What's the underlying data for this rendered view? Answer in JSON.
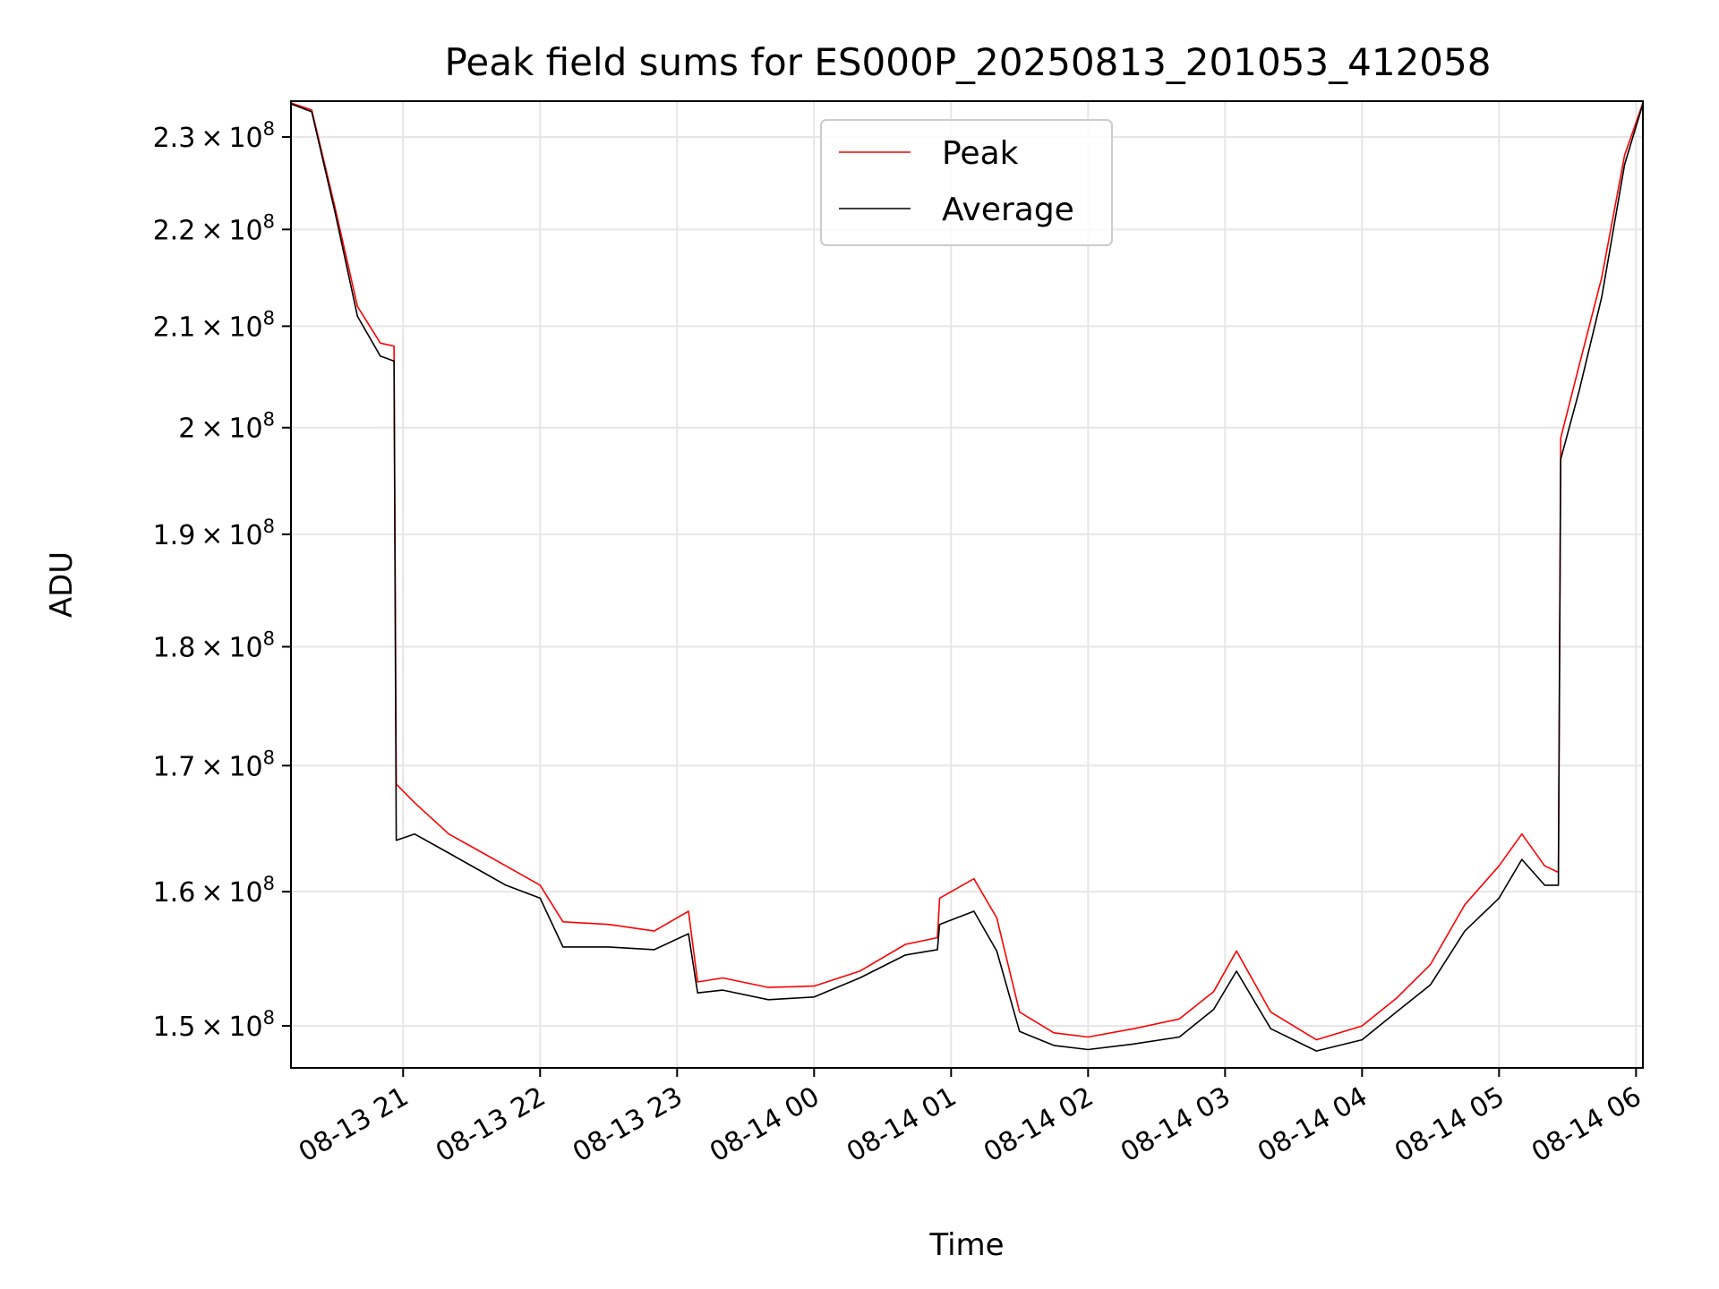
{
  "chart_data": {
    "type": "line",
    "title": "Peak field sums for ES000P_20250813_201053_412058",
    "xlabel": "Time",
    "ylabel": "ADU",
    "y_scale": "log",
    "xlim": [
      "2025-08-13T20:10:53",
      "2025-08-14T06:03:00"
    ],
    "ylim": [
      147000000.0,
      234000000.0
    ],
    "x_ticks": [
      {
        "value": "2025-08-13T21:00:00",
        "label": "08-13 21"
      },
      {
        "value": "2025-08-13T22:00:00",
        "label": "08-13 22"
      },
      {
        "value": "2025-08-13T23:00:00",
        "label": "08-13 23"
      },
      {
        "value": "2025-08-14T00:00:00",
        "label": "08-14 00"
      },
      {
        "value": "2025-08-14T01:00:00",
        "label": "08-14 01"
      },
      {
        "value": "2025-08-14T02:00:00",
        "label": "08-14 02"
      },
      {
        "value": "2025-08-14T03:00:00",
        "label": "08-14 03"
      },
      {
        "value": "2025-08-14T04:00:00",
        "label": "08-14 04"
      },
      {
        "value": "2025-08-14T05:00:00",
        "label": "08-14 05"
      },
      {
        "value": "2025-08-14T06:00:00",
        "label": "08-14 06"
      }
    ],
    "y_ticks": [
      {
        "value": 150000000,
        "mantissa": "1.5",
        "base": "10",
        "exp": "8"
      },
      {
        "value": 160000000,
        "mantissa": "1.6",
        "base": "10",
        "exp": "8"
      },
      {
        "value": 170000000,
        "mantissa": "1.7",
        "base": "10",
        "exp": "8"
      },
      {
        "value": 180000000,
        "mantissa": "1.8",
        "base": "10",
        "exp": "8"
      },
      {
        "value": 190000000,
        "mantissa": "1.9",
        "base": "10",
        "exp": "8"
      },
      {
        "value": 200000000,
        "mantissa": "2",
        "base": "10",
        "exp": "8"
      },
      {
        "value": 210000000,
        "mantissa": "2.1",
        "base": "10",
        "exp": "8"
      },
      {
        "value": 220000000,
        "mantissa": "2.2",
        "base": "10",
        "exp": "8"
      },
      {
        "value": 230000000,
        "mantissa": "2.3",
        "base": "10",
        "exp": "8"
      }
    ],
    "grid": true,
    "legend": {
      "position": "top-center",
      "entries": [
        "Peak",
        "Average"
      ]
    },
    "series": [
      {
        "name": "Peak",
        "color": "#ff0000",
        "x": [
          "2025-08-13T20:10:53",
          "2025-08-13T20:20",
          "2025-08-13T20:30",
          "2025-08-13T20:40",
          "2025-08-13T20:50",
          "2025-08-13T20:56",
          "2025-08-13T20:57",
          "2025-08-13T21:05",
          "2025-08-13T21:20",
          "2025-08-13T21:35",
          "2025-08-13T21:45",
          "2025-08-13T22:00",
          "2025-08-13T22:10",
          "2025-08-13T22:30",
          "2025-08-13T22:50",
          "2025-08-13T23:05",
          "2025-08-13T23:09",
          "2025-08-13T23:20",
          "2025-08-13T23:40",
          "2025-08-14T00:00",
          "2025-08-14T00:20",
          "2025-08-14T00:40",
          "2025-08-14T00:54",
          "2025-08-14T00:55",
          "2025-08-14T01:10",
          "2025-08-14T01:20",
          "2025-08-14T01:30",
          "2025-08-14T01:45",
          "2025-08-14T02:00",
          "2025-08-14T02:20",
          "2025-08-14T02:40",
          "2025-08-14T02:55",
          "2025-08-14T03:05",
          "2025-08-14T03:20",
          "2025-08-14T03:40",
          "2025-08-14T04:00",
          "2025-08-14T04:15",
          "2025-08-14T04:30",
          "2025-08-14T04:45",
          "2025-08-14T05:00",
          "2025-08-14T05:10",
          "2025-08-14T05:20",
          "2025-08-14T05:26",
          "2025-08-14T05:27",
          "2025-08-14T05:35",
          "2025-08-14T05:45",
          "2025-08-14T05:55",
          "2025-08-14T06:03"
        ],
        "y": [
          233800000,
          233000000,
          222500000,
          212000000,
          208300000,
          208000000,
          168500000,
          167000000,
          164500000,
          163000000,
          162000000,
          160500000,
          157700000,
          157500000,
          157000000,
          158500000,
          153200000,
          153500000,
          152800000,
          152900000,
          154000000,
          156000000,
          156500000,
          159500000,
          161000000,
          158000000,
          151000000,
          149500000,
          149200000,
          149800000,
          150500000,
          152500000,
          155500000,
          151000000,
          149000000,
          150000000,
          152000000,
          154500000,
          159000000,
          162000000,
          164500000,
          162000000,
          161500000,
          199000000,
          206000000,
          215000000,
          228000000,
          233800000
        ]
      },
      {
        "name": "Average",
        "color": "#000000",
        "x": [
          "2025-08-13T20:10:53",
          "2025-08-13T20:20",
          "2025-08-13T20:30",
          "2025-08-13T20:40",
          "2025-08-13T20:50",
          "2025-08-13T20:56",
          "2025-08-13T20:57",
          "2025-08-13T21:05",
          "2025-08-13T21:20",
          "2025-08-13T21:35",
          "2025-08-13T21:45",
          "2025-08-13T22:00",
          "2025-08-13T22:10",
          "2025-08-13T22:30",
          "2025-08-13T22:50",
          "2025-08-13T23:05",
          "2025-08-13T23:09",
          "2025-08-13T23:20",
          "2025-08-13T23:40",
          "2025-08-14T00:00",
          "2025-08-14T00:20",
          "2025-08-14T00:40",
          "2025-08-14T00:54",
          "2025-08-14T00:55",
          "2025-08-14T01:10",
          "2025-08-14T01:20",
          "2025-08-14T01:30",
          "2025-08-14T01:45",
          "2025-08-14T02:00",
          "2025-08-14T02:20",
          "2025-08-14T02:40",
          "2025-08-14T02:55",
          "2025-08-14T03:05",
          "2025-08-14T03:20",
          "2025-08-14T03:40",
          "2025-08-14T04:00",
          "2025-08-14T04:15",
          "2025-08-14T04:30",
          "2025-08-14T04:45",
          "2025-08-14T05:00",
          "2025-08-14T05:10",
          "2025-08-14T05:20",
          "2025-08-14T05:26",
          "2025-08-14T05:27",
          "2025-08-14T05:35",
          "2025-08-14T05:45",
          "2025-08-14T05:55",
          "2025-08-14T06:03"
        ],
        "y": [
          233700000,
          232800000,
          222000000,
          211000000,
          207000000,
          206500000,
          164000000,
          164500000,
          163000000,
          161500000,
          160500000,
          159500000,
          155800000,
          155800000,
          155600000,
          156800000,
          152400000,
          152600000,
          151900000,
          152100000,
          153500000,
          155200000,
          155600000,
          157500000,
          158500000,
          155500000,
          149600000,
          148600000,
          148300000,
          148700000,
          149200000,
          151200000,
          154000000,
          149800000,
          148200000,
          149000000,
          151000000,
          153000000,
          157000000,
          159500000,
          162500000,
          160500000,
          160500000,
          197000000,
          203500000,
          213000000,
          227000000,
          233700000
        ]
      }
    ]
  }
}
